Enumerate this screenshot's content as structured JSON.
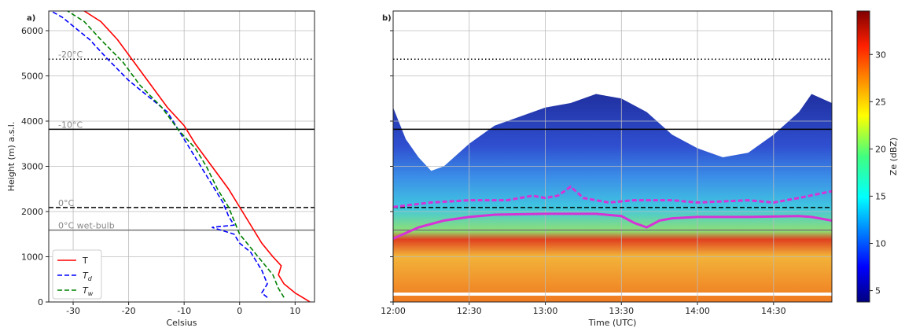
{
  "chart_data": [
    {
      "type": "line",
      "panel_label": "a)",
      "xlabel": "Celsius",
      "ylabel": "Height (m) a.s.l.",
      "xlim": [
        -34.4,
        13.5
      ],
      "ylim": [
        0,
        6435
      ],
      "xticks": [
        -30,
        -20,
        -10,
        0,
        10
      ],
      "yticks": [
        0,
        1000,
        2000,
        3000,
        4000,
        5000,
        6000
      ],
      "grid": true,
      "ref_lines": [
        {
          "label": "-20°C",
          "value": 5370,
          "style": "dotted",
          "color": "#000000"
        },
        {
          "label": "-10°C",
          "value": 3820,
          "style": "solid",
          "color": "#000000"
        },
        {
          "label": "0°C",
          "value": 2090,
          "style": "dashed",
          "color": "#000000"
        },
        {
          "label": "0°C wet-bulb",
          "value": 1590,
          "style": "solid",
          "color": "#777777"
        }
      ],
      "legend": "lower left",
      "series": [
        {
          "name": "T",
          "color": "#ff0000",
          "style": "solid",
          "x": [
            12.7,
            10,
            8,
            7,
            7.5,
            6,
            4,
            2,
            0,
            -2,
            -5,
            -8,
            -10,
            -13,
            -16,
            -19,
            -22,
            -25,
            -28
          ],
          "y": [
            0,
            200,
            400,
            600,
            800,
            1000,
            1300,
            1700,
            2100,
            2500,
            3000,
            3500,
            3900,
            4300,
            4800,
            5300,
            5800,
            6200,
            6435
          ]
        },
        {
          "name": "T",
          "subscript": "d",
          "color": "#0000ff",
          "style": "dashed",
          "x": [
            5,
            4,
            5,
            4,
            3,
            2,
            0,
            -1,
            -5,
            -1,
            -2,
            -3,
            -5,
            -7,
            -9,
            -11,
            -13,
            -17,
            -20,
            -24,
            -27,
            -29,
            -32,
            -34
          ],
          "y": [
            100,
            200,
            400,
            700,
            900,
            1100,
            1300,
            1500,
            1650,
            1700,
            1900,
            2200,
            2600,
            3000,
            3400,
            3800,
            4200,
            4600,
            4900,
            5400,
            5800,
            6000,
            6300,
            6435
          ]
        },
        {
          "name": "T",
          "subscript": "w",
          "color": "#008000",
          "style": "dashed",
          "x": [
            8,
            7,
            6,
            4,
            2,
            0,
            -1,
            -2,
            -4,
            -6,
            -8,
            -11,
            -14,
            -18,
            -21,
            -25,
            -28,
            -31
          ],
          "y": [
            100,
            300,
            600,
            900,
            1200,
            1500,
            1800,
            2100,
            2500,
            3000,
            3400,
            3800,
            4300,
            4800,
            5300,
            5800,
            6200,
            6435
          ]
        }
      ]
    },
    {
      "type": "radar",
      "panel_label": "b)",
      "xlabel": "Time (UTC)",
      "xlim": [
        0,
        173
      ],
      "ylim": [
        0,
        6435
      ],
      "xticks": [
        {
          "value": 0,
          "label": "12:00"
        },
        {
          "value": 30,
          "label": "12:30"
        },
        {
          "value": 60,
          "label": "13:00"
        },
        {
          "value": 90,
          "label": "13:30"
        },
        {
          "value": 120,
          "label": "14:00"
        },
        {
          "value": 150,
          "label": "14:30"
        }
      ],
      "yticks": [
        0,
        1000,
        2000,
        3000,
        4000,
        5000,
        6000
      ],
      "ytick_labels": false,
      "grid": true,
      "ref_lines": [
        {
          "value": 5370,
          "style": "dotted",
          "color": "#000000"
        },
        {
          "value": 3820,
          "style": "solid",
          "color": "#000000"
        },
        {
          "value": 2090,
          "style": "dashed",
          "color": "#000000"
        },
        {
          "value": 1590,
          "style": "solid",
          "color": "#777777"
        }
      ],
      "echo_top": {
        "x": [
          0,
          5,
          10,
          15,
          20,
          30,
          40,
          50,
          60,
          70,
          80,
          90,
          100,
          110,
          120,
          130,
          140,
          150,
          160,
          165,
          173
        ],
        "y": [
          4300,
          3600,
          3200,
          2900,
          3000,
          3500,
          3900,
          4100,
          4300,
          4400,
          4600,
          4500,
          4200,
          3700,
          3400,
          3200,
          3300,
          3700,
          4200,
          4600,
          4400
        ]
      },
      "series": [
        {
          "color": "#d633d6",
          "style": "solid",
          "x": [
            0,
            10,
            20,
            30,
            40,
            60,
            80,
            90,
            95,
            100,
            105,
            110,
            120,
            140,
            160,
            165,
            173
          ],
          "y": [
            1400,
            1650,
            1800,
            1880,
            1930,
            1950,
            1950,
            1900,
            1750,
            1650,
            1800,
            1850,
            1880,
            1880,
            1900,
            1880,
            1800
          ]
        },
        {
          "color": "#d633d6",
          "style": "dashed",
          "x": [
            0,
            15,
            30,
            45,
            55,
            60,
            65,
            70,
            75,
            85,
            95,
            110,
            120,
            140,
            150,
            160,
            173
          ],
          "y": [
            2100,
            2200,
            2250,
            2250,
            2350,
            2300,
            2350,
            2550,
            2300,
            2200,
            2250,
            2250,
            2200,
            2250,
            2200,
            2300,
            2450
          ]
        }
      ],
      "colorbar": {
        "label": "Ze (dBZ)",
        "lim": [
          3.8,
          34.6
        ],
        "ticks": [
          5,
          10,
          15,
          20,
          25,
          30
        ]
      }
    }
  ]
}
